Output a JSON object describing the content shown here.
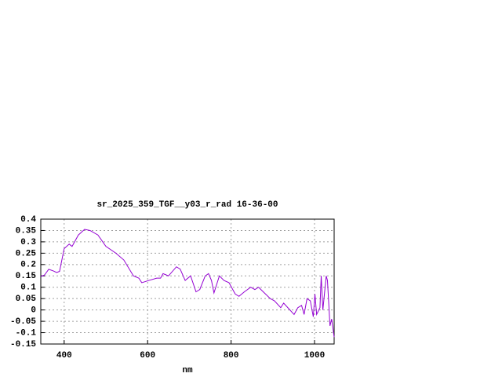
{
  "chart_data": {
    "type": "line",
    "title": "sr_2025_359_TGF__y03_r_rad 16-36-00",
    "x_label": "nm",
    "x": [
      344,
      353,
      363,
      374,
      382,
      389,
      400,
      412,
      419,
      434,
      449,
      462,
      481,
      500,
      524,
      543,
      566,
      579,
      586,
      603,
      622,
      631,
      637,
      650,
      669,
      678,
      690,
      703,
      716,
      725,
      738,
      746,
      753,
      759,
      772,
      783,
      795,
      810,
      819,
      832,
      847,
      857,
      866,
      877,
      894,
      904,
      919,
      926,
      941,
      951,
      960,
      969,
      975,
      982,
      990,
      997,
      1001,
      1005,
      1013,
      1016,
      1020,
      1028,
      1031,
      1037,
      1041,
      1047
    ],
    "series": [
      {
        "color": "#9400d3",
        "values": [
          0.147,
          0.154,
          0.179,
          0.172,
          0.165,
          0.17,
          0.27,
          0.29,
          0.28,
          0.33,
          0.355,
          0.35,
          0.33,
          0.28,
          0.25,
          0.22,
          0.15,
          0.14,
          0.12,
          0.13,
          0.14,
          0.14,
          0.16,
          0.15,
          0.19,
          0.18,
          0.13,
          0.15,
          0.08,
          0.09,
          0.15,
          0.16,
          0.13,
          0.075,
          0.15,
          0.13,
          0.12,
          0.07,
          0.06,
          0.08,
          0.1,
          0.09,
          0.1,
          0.08,
          0.05,
          0.04,
          0.01,
          0.03,
          0.0,
          -0.02,
          0.01,
          0.02,
          -0.02,
          0.05,
          0.04,
          -0.03,
          0.07,
          -0.02,
          0.01,
          0.15,
          0.0,
          0.15,
          0.13,
          -0.07,
          -0.04,
          -0.12
        ]
      }
    ],
    "xlim": [
      344,
      1047
    ],
    "xticks": [
      400,
      600,
      800,
      1000
    ],
    "ylim": [
      -0.15,
      0.4
    ],
    "yticks": [
      -0.15,
      -0.1,
      -0.05,
      0,
      0.05,
      0.1,
      0.15,
      0.2,
      0.25,
      0.3,
      0.35,
      0.4
    ],
    "grid": true
  }
}
